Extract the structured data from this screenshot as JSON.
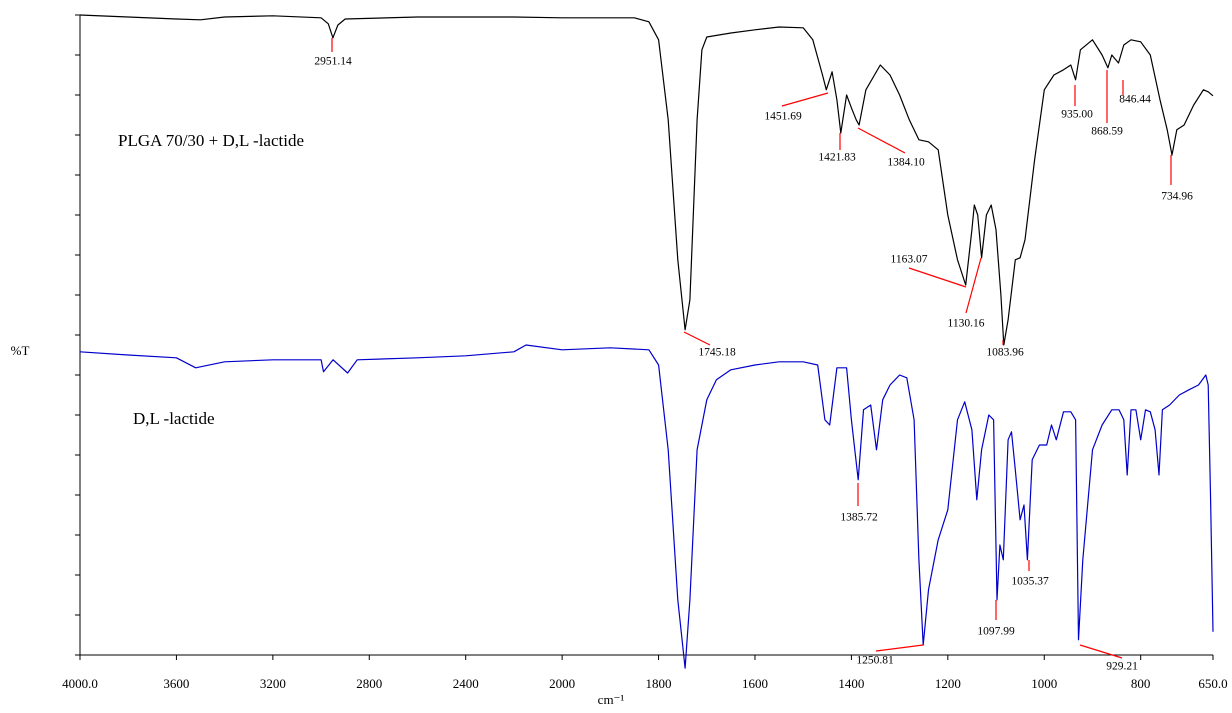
{
  "chart_data": {
    "type": "line",
    "y_label": "%T",
    "x_label": "cm⁻¹",
    "xlim": [
      4000,
      650
    ],
    "xticks": [
      {
        "value": 4000,
        "label": "4000.0"
      },
      3600,
      3200,
      2800,
      2400,
      2000,
      1800,
      1600,
      1400,
      1200,
      1000,
      800,
      {
        "value": 650,
        "label": "650.0"
      }
    ],
    "ylim": [
      0,
      16
    ],
    "yticks": [
      0,
      1,
      2,
      3,
      4,
      5,
      6,
      7,
      8,
      9,
      10,
      11,
      12,
      13,
      14,
      15,
      16
    ],
    "series": [
      {
        "name": "PLGA 70/30 + D,L -lactide",
        "color": "#000000",
        "x": [
          4000,
          3800,
          3600,
          3500,
          3400,
          3200,
          3000,
          2970,
          2951,
          2930,
          2900,
          2600,
          2400,
          2200,
          2000,
          1850,
          1820,
          1800,
          1780,
          1760,
          1745,
          1735,
          1720,
          1710,
          1700,
          1650,
          1600,
          1550,
          1500,
          1480,
          1460,
          1452,
          1440,
          1430,
          1422,
          1410,
          1400,
          1390,
          1384,
          1370,
          1340,
          1320,
          1300,
          1280,
          1260,
          1240,
          1220,
          1200,
          1180,
          1163,
          1150,
          1145,
          1138,
          1130,
          1120,
          1110,
          1100,
          1090,
          1084,
          1075,
          1060,
          1050,
          1040,
          1020,
          1000,
          980,
          960,
          945,
          935,
          925,
          900,
          880,
          868,
          860,
          846,
          835,
          820,
          800,
          780,
          760,
          745,
          735,
          725,
          710,
          690,
          670,
          660,
          650
        ],
        "values": [
          16.0,
          15.95,
          15.9,
          15.88,
          15.95,
          15.98,
          15.93,
          15.78,
          15.43,
          15.75,
          15.9,
          15.95,
          15.95,
          15.95,
          15.93,
          15.93,
          15.83,
          15.38,
          13.38,
          9.88,
          8.13,
          8.88,
          13.38,
          15.13,
          15.45,
          15.55,
          15.63,
          15.7,
          15.68,
          15.38,
          14.5,
          14.13,
          14.58,
          13.88,
          13.05,
          14.0,
          13.68,
          13.38,
          13.25,
          14.13,
          14.75,
          14.5,
          14.0,
          13.38,
          12.88,
          12.83,
          12.63,
          11.0,
          9.88,
          9.25,
          10.63,
          11.25,
          11.0,
          9.93,
          11.0,
          11.25,
          10.63,
          9.0,
          7.75,
          8.38,
          9.88,
          9.93,
          10.38,
          12.38,
          14.13,
          14.5,
          14.63,
          14.75,
          14.38,
          15.13,
          15.38,
          15.0,
          14.68,
          15.0,
          14.8,
          15.25,
          15.38,
          15.33,
          15.0,
          13.88,
          13.13,
          12.5,
          13.13,
          13.25,
          13.75,
          14.13,
          14.08,
          13.98
        ]
      },
      {
        "name": "D,L -lactide",
        "color": "#0000cc",
        "x": [
          4000,
          3800,
          3600,
          3520,
          3400,
          3200,
          3000,
          2990,
          2950,
          2890,
          2850,
          2600,
          2400,
          2200,
          2150,
          2000,
          1900,
          1820,
          1800,
          1780,
          1760,
          1745,
          1735,
          1720,
          1700,
          1680,
          1650,
          1600,
          1550,
          1500,
          1470,
          1455,
          1445,
          1430,
          1410,
          1400,
          1386,
          1375,
          1360,
          1348,
          1335,
          1320,
          1300,
          1285,
          1270,
          1260,
          1251,
          1240,
          1220,
          1200,
          1180,
          1165,
          1150,
          1140,
          1130,
          1115,
          1105,
          1098,
          1092,
          1085,
          1075,
          1068,
          1060,
          1050,
          1042,
          1035,
          1025,
          1010,
          995,
          985,
          975,
          960,
          945,
          935,
          929,
          920,
          900,
          880,
          860,
          845,
          835,
          828,
          820,
          810,
          800,
          790,
          780,
          770,
          762,
          755,
          740,
          720,
          700,
          680,
          665,
          660,
          655,
          650
        ],
        "values": [
          7.58,
          7.5,
          7.43,
          7.18,
          7.33,
          7.38,
          7.38,
          7.08,
          7.38,
          7.05,
          7.38,
          7.43,
          7.48,
          7.58,
          7.75,
          7.63,
          7.68,
          7.63,
          7.25,
          5.13,
          1.38,
          -0.33,
          1.38,
          5.13,
          6.38,
          6.88,
          7.13,
          7.25,
          7.33,
          7.33,
          7.25,
          5.88,
          5.75,
          7.18,
          7.18,
          5.88,
          4.38,
          6.13,
          6.25,
          5.13,
          6.38,
          6.75,
          7.0,
          6.93,
          5.88,
          2.38,
          0.25,
          1.63,
          2.88,
          3.63,
          5.88,
          6.33,
          5.63,
          3.88,
          5.13,
          6.0,
          5.88,
          1.38,
          2.75,
          2.38,
          5.38,
          5.58,
          4.63,
          3.38,
          3.75,
          2.38,
          4.88,
          5.25,
          5.25,
          5.75,
          5.38,
          6.08,
          6.08,
          5.88,
          0.38,
          2.38,
          5.13,
          5.75,
          6.13,
          6.13,
          5.88,
          4.5,
          6.13,
          6.13,
          5.38,
          6.13,
          6.08,
          5.63,
          4.5,
          6.13,
          6.25,
          6.5,
          6.63,
          6.75,
          7.0,
          6.75,
          3.88,
          0.58
        ]
      }
    ],
    "annotations": [
      {
        "value": 2951.14,
        "label": "2951.14"
      },
      {
        "value": 1745.18,
        "label": "1745.18"
      },
      {
        "value": 1451.69,
        "label": "1451.69"
      },
      {
        "value": 1421.83,
        "label": "1421.83"
      },
      {
        "value": 1384.1,
        "label": "1384.10"
      },
      {
        "value": 935,
        "label": "935.00"
      },
      {
        "value": 868.59,
        "label": "868.59"
      },
      {
        "value": 846.44,
        "label": "846.44"
      },
      {
        "value": 734.96,
        "label": "734.96"
      },
      {
        "value": 1163.07,
        "label": "1163.07"
      },
      {
        "value": 1130.16,
        "label": "1130.16"
      },
      {
        "value": 1083.96,
        "label": "1083.96"
      },
      {
        "value": 1385.72,
        "label": "1385.72"
      },
      {
        "value": 1250.81,
        "label": "1250.81"
      },
      {
        "value": 1097.99,
        "label": "1097.99"
      },
      {
        "value": 1035.37,
        "label": "1035.37"
      },
      {
        "value": 929.21,
        "label": "929.21"
      }
    ]
  }
}
